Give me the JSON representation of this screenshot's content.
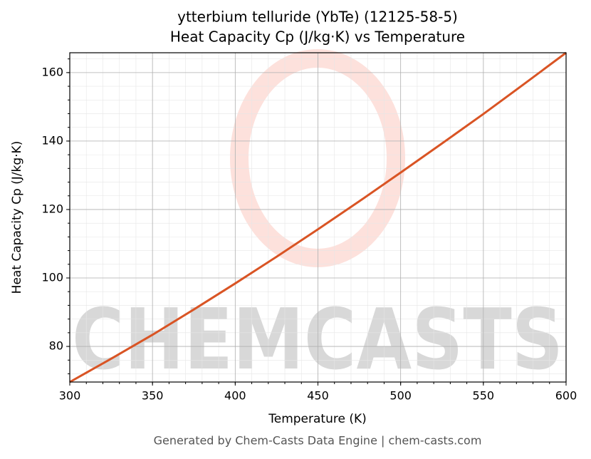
{
  "chart_data": {
    "type": "line",
    "title": "ytterbium telluride (YbTe) (12125-58-5)",
    "subtitle": "Heat Capacity Cp (J/kg·K) vs Temperature",
    "x_label": "Temperature (K)",
    "y_label": "Heat Capacity Cp (J/kg·K)",
    "footer": "Generated by Chem-Casts Data Engine | chem-casts.com",
    "watermark": "CHEMCASTS",
    "x": [
      300,
      325,
      350,
      375,
      400,
      425,
      450,
      475,
      500,
      525,
      550,
      575,
      600
    ],
    "series": [
      {
        "name": "Heat Capacity Cp",
        "color": "#d95424",
        "values": [
          69.6,
          76.4,
          83.4,
          90.8,
          98.4,
          106.2,
          114.2,
          122.4,
          130.8,
          139.3,
          147.9,
          156.8,
          165.8
        ]
      }
    ],
    "xlim": [
      300,
      600
    ],
    "xticks": [
      300,
      350,
      400,
      450,
      500,
      550,
      600
    ],
    "ylim": [
      69.6,
      165.8
    ],
    "yticks": [
      80,
      100,
      120,
      140,
      160
    ],
    "grid": true
  }
}
